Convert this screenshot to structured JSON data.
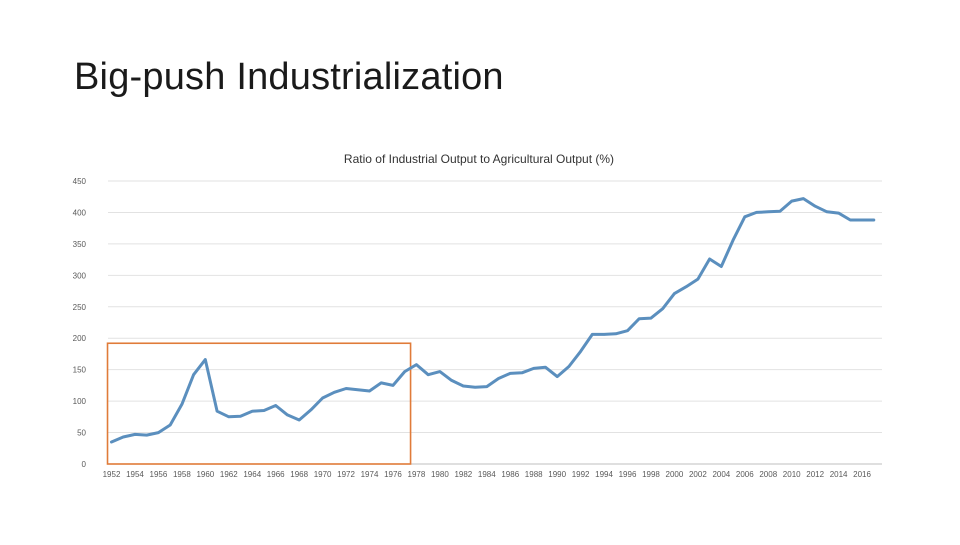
{
  "slide": {
    "title": "Big-push Industrialization"
  },
  "chart_data": {
    "type": "line",
    "title": "Ratio of Industrial Output to Agricultural Output (%)",
    "xlabel": "",
    "ylabel": "",
    "ylim": [
      0,
      450
    ],
    "yticks": [
      0,
      50,
      100,
      150,
      200,
      250,
      300,
      350,
      400,
      450
    ],
    "xticks": [
      1952,
      1954,
      1956,
      1958,
      1960,
      1962,
      1964,
      1966,
      1968,
      1970,
      1972,
      1974,
      1976,
      1978,
      1980,
      1982,
      1984,
      1986,
      1988,
      1990,
      1992,
      1994,
      1996,
      1998,
      2000,
      2002,
      2004,
      2006,
      2008,
      2010,
      2012,
      2014,
      2016
    ],
    "grid": true,
    "legend": "none",
    "series_color": "#5b8fbe",
    "highlight_color": "#e07b39",
    "highlight_range": {
      "x": [
        1952,
        1977.5
      ],
      "y": [
        0,
        192
      ]
    },
    "series": [
      {
        "name": "Ratio",
        "x": [
          1952,
          1953,
          1954,
          1955,
          1956,
          1957,
          1958,
          1959,
          1960,
          1961,
          1962,
          1963,
          1964,
          1965,
          1966,
          1967,
          1968,
          1969,
          1970,
          1971,
          1972,
          1973,
          1974,
          1975,
          1976,
          1977,
          1978,
          1979,
          1980,
          1981,
          1982,
          1983,
          1984,
          1985,
          1986,
          1987,
          1988,
          1989,
          1990,
          1991,
          1992,
          1993,
          1994,
          1995,
          1996,
          1997,
          1998,
          1999,
          2000,
          2001,
          2002,
          2003,
          2004,
          2005,
          2006,
          2007,
          2008,
          2009,
          2010,
          2011,
          2012,
          2013,
          2014,
          2015,
          2016,
          2017
        ],
        "values": [
          35,
          43,
          47,
          46,
          50,
          62,
          95,
          142,
          166,
          84,
          75,
          76,
          84,
          85,
          93,
          78,
          70,
          86,
          105,
          114,
          120,
          118,
          116,
          129,
          125,
          147,
          158,
          142,
          147,
          133,
          124,
          122,
          123,
          136,
          144,
          145,
          152,
          154,
          139,
          155,
          179,
          206,
          206,
          207,
          212,
          231,
          232,
          247,
          271,
          282,
          294,
          326,
          314,
          356,
          393,
          400,
          401,
          402,
          418,
          422,
          410,
          401,
          399,
          388,
          388,
          388
        ]
      }
    ]
  }
}
